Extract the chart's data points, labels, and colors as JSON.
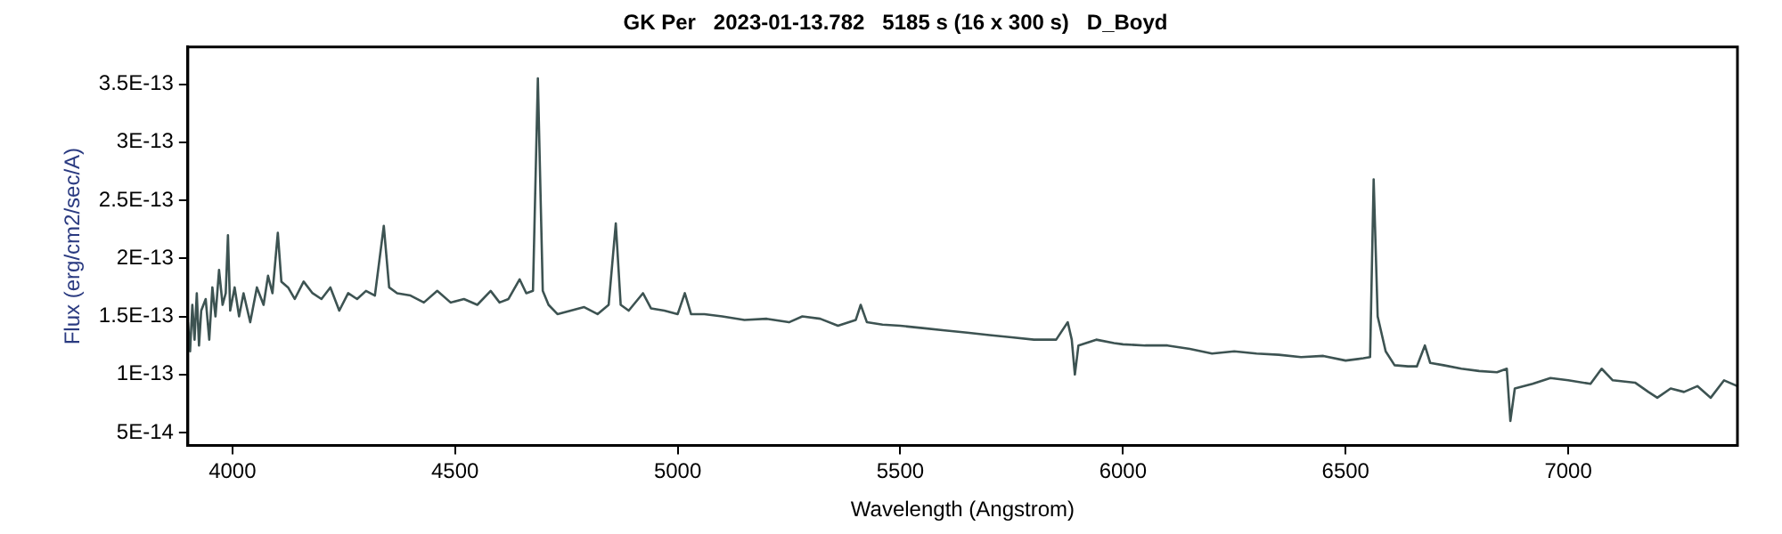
{
  "chart_data": {
    "type": "line",
    "title": "GK Per   2023-01-13.782   5185 s (16 x 300 s)   D_Boyd",
    "xlabel": "Wavelength (Angstrom)",
    "ylabel": "Flux (erg/cm2/sec/A)",
    "xlim": [
      3900,
      7380
    ],
    "xticks": [
      4000,
      4500,
      5000,
      5500,
      6000,
      6500,
      7000
    ],
    "ylim": [
      3.9e-14,
      3.82e-13
    ],
    "yticks": [
      {
        "value": 5e-14,
        "label": "5E-14"
      },
      {
        "value": 1e-13,
        "label": "1E-13"
      },
      {
        "value": 1.5e-13,
        "label": "1.5E-13"
      },
      {
        "value": 2e-13,
        "label": "2E-13"
      },
      {
        "value": 2.5e-13,
        "label": "2.5E-13"
      },
      {
        "value": 3e-13,
        "label": "3E-13"
      },
      {
        "value": 3.5e-13,
        "label": "3.5E-13"
      }
    ],
    "grid": false,
    "legend": false,
    "marker": "none",
    "line_style": "solid",
    "series": [
      {
        "color": "#3d5352",
        "x": [
          3900,
          3905,
          3910,
          3915,
          3920,
          3925,
          3930,
          3940,
          3948,
          3955,
          3962,
          3970,
          3978,
          3985,
          3990,
          3995,
          4005,
          4015,
          4025,
          4040,
          4055,
          4070,
          4080,
          4090,
          4102,
          4110,
          4125,
          4140,
          4160,
          4180,
          4200,
          4220,
          4240,
          4260,
          4280,
          4300,
          4320,
          4340,
          4352,
          4370,
          4400,
          4430,
          4460,
          4490,
          4520,
          4550,
          4580,
          4600,
          4620,
          4645,
          4660,
          4675,
          4686,
          4697,
          4710,
          4730,
          4760,
          4790,
          4820,
          4845,
          4861,
          4872,
          4890,
          4922,
          4940,
          4970,
          5000,
          5016,
          5030,
          5060,
          5100,
          5150,
          5200,
          5250,
          5280,
          5320,
          5360,
          5400,
          5411,
          5425,
          5460,
          5500,
          5550,
          5600,
          5650,
          5700,
          5750,
          5800,
          5850,
          5876,
          5885,
          5892,
          5900,
          5940,
          5980,
          6000,
          6050,
          6100,
          6150,
          6200,
          6250,
          6300,
          6350,
          6400,
          6450,
          6500,
          6540,
          6555,
          6563,
          6572,
          6590,
          6610,
          6640,
          6660,
          6678,
          6690,
          6720,
          6760,
          6800,
          6840,
          6862,
          6870,
          6880,
          6920,
          6960,
          7000,
          7050,
          7075,
          7100,
          7150,
          7180,
          7200,
          7230,
          7260,
          7290,
          7320,
          7350,
          7380
        ],
        "values": [
          1.45e-13,
          1.2e-13,
          1.6e-13,
          1.3e-13,
          1.7e-13,
          1.25e-13,
          1.55e-13,
          1.65e-13,
          1.3e-13,
          1.75e-13,
          1.5e-13,
          1.9e-13,
          1.6e-13,
          1.7e-13,
          2.2e-13,
          1.55e-13,
          1.75e-13,
          1.5e-13,
          1.7e-13,
          1.45e-13,
          1.75e-13,
          1.6e-13,
          1.85e-13,
          1.7e-13,
          2.22e-13,
          1.8e-13,
          1.75e-13,
          1.65e-13,
          1.8e-13,
          1.7e-13,
          1.65e-13,
          1.75e-13,
          1.55e-13,
          1.7e-13,
          1.65e-13,
          1.72e-13,
          1.68e-13,
          2.28e-13,
          1.75e-13,
          1.7e-13,
          1.68e-13,
          1.62e-13,
          1.72e-13,
          1.62e-13,
          1.65e-13,
          1.6e-13,
          1.72e-13,
          1.62e-13,
          1.65e-13,
          1.82e-13,
          1.7e-13,
          1.72e-13,
          3.55e-13,
          1.72e-13,
          1.6e-13,
          1.52e-13,
          1.55e-13,
          1.58e-13,
          1.52e-13,
          1.6e-13,
          2.3e-13,
          1.6e-13,
          1.55e-13,
          1.7e-13,
          1.57e-13,
          1.55e-13,
          1.52e-13,
          1.7e-13,
          1.52e-13,
          1.52e-13,
          1.5e-13,
          1.47e-13,
          1.48e-13,
          1.45e-13,
          1.5e-13,
          1.48e-13,
          1.42e-13,
          1.47e-13,
          1.6e-13,
          1.45e-13,
          1.43e-13,
          1.42e-13,
          1.4e-13,
          1.38e-13,
          1.36e-13,
          1.34e-13,
          1.32e-13,
          1.3e-13,
          1.3e-13,
          1.45e-13,
          1.3e-13,
          1e-13,
          1.25e-13,
          1.3e-13,
          1.27e-13,
          1.26e-13,
          1.25e-13,
          1.25e-13,
          1.22e-13,
          1.18e-13,
          1.2e-13,
          1.18e-13,
          1.17e-13,
          1.15e-13,
          1.16e-13,
          1.12e-13,
          1.14e-13,
          1.15e-13,
          2.68e-13,
          1.5e-13,
          1.2e-13,
          1.08e-13,
          1.07e-13,
          1.07e-13,
          1.25e-13,
          1.1e-13,
          1.08e-13,
          1.05e-13,
          1.03e-13,
          1.02e-13,
          1.05e-13,
          6e-14,
          8.8e-14,
          9.2e-14,
          9.7e-14,
          9.5e-14,
          9.2e-14,
          1.05e-13,
          9.5e-14,
          9.3e-14,
          8.5e-14,
          8e-14,
          8.8e-14,
          8.5e-14,
          9e-14,
          8e-14,
          9.5e-14,
          9e-14
        ]
      }
    ]
  }
}
